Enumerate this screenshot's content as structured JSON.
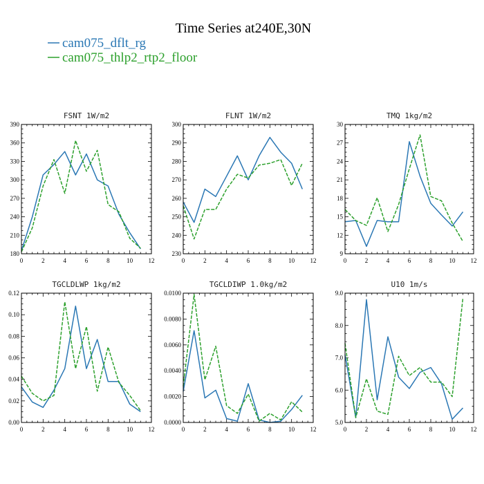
{
  "figure": {
    "title": "Time Series at240E,30N",
    "legend": [
      {
        "name": "cam075_dflt_rg",
        "color": "#2a77b4"
      },
      {
        "name": "cam075_thlp2_rtp2_floor",
        "color": "#2ca02c",
        "dash": true
      }
    ]
  },
  "chart_data": [
    {
      "type": "line",
      "title": "FSNT   1W/m2",
      "x": [
        0,
        1,
        2,
        3,
        4,
        5,
        6,
        7,
        8,
        9,
        10,
        11
      ],
      "xlim": [
        0,
        12
      ],
      "ylim": [
        180,
        390
      ],
      "xticks": [
        0,
        2,
        4,
        6,
        8,
        10,
        12
      ],
      "yticks": [
        180,
        210,
        240,
        270,
        300,
        330,
        360,
        390
      ],
      "ytick_labels": [
        "180",
        "210",
        "240",
        "270",
        "300",
        "330",
        "360",
        "390"
      ],
      "series": [
        {
          "name": "cam075_dflt_rg",
          "values": [
            185,
            240,
            308,
            325,
            346,
            308,
            342,
            300,
            290,
            244,
            214,
            188
          ]
        },
        {
          "name": "cam075_thlp2_rtp2_floor",
          "values": [
            183,
            222,
            290,
            333,
            278,
            364,
            314,
            348,
            260,
            248,
            205,
            189
          ]
        }
      ]
    },
    {
      "type": "line",
      "title": "FLNT   1W/m2",
      "x": [
        0,
        1,
        2,
        3,
        4,
        5,
        6,
        7,
        8,
        9,
        10,
        11
      ],
      "xlim": [
        0,
        12
      ],
      "ylim": [
        230,
        300
      ],
      "xticks": [
        0,
        2,
        4,
        6,
        8,
        10,
        12
      ],
      "yticks": [
        230,
        240,
        250,
        260,
        270,
        280,
        290,
        300
      ],
      "ytick_labels": [
        "230",
        "240",
        "250",
        "260",
        "270",
        "280",
        "290",
        "300"
      ],
      "series": [
        {
          "name": "cam075_dflt_rg",
          "values": [
            258,
            247,
            265,
            261,
            272,
            283,
            270,
            283,
            293,
            285,
            279,
            265
          ]
        },
        {
          "name": "cam075_thlp2_rtp2_floor",
          "values": [
            256,
            238,
            254,
            254,
            265,
            273,
            271,
            278,
            279,
            281,
            267,
            279
          ]
        }
      ]
    },
    {
      "type": "line",
      "title": "TMQ   1kg/m2",
      "x": [
        0,
        1,
        2,
        3,
        4,
        5,
        6,
        7,
        8,
        9,
        10,
        11
      ],
      "xlim": [
        0,
        12
      ],
      "ylim": [
        9,
        30
      ],
      "xticks": [
        0,
        2,
        4,
        6,
        8,
        10,
        12
      ],
      "yticks": [
        9,
        12,
        15,
        18,
        21,
        24,
        27,
        30
      ],
      "ytick_labels": [
        "9",
        "12",
        "15",
        "18",
        "21",
        "24",
        "27",
        "30"
      ],
      "series": [
        {
          "name": "cam075_dflt_rg",
          "values": [
            14.2,
            14.4,
            10.2,
            14.4,
            14.2,
            14.2,
            27.2,
            21.6,
            17.2,
            15.3,
            13.5,
            15.8
          ]
        },
        {
          "name": "cam075_thlp2_rtp2_floor",
          "values": [
            16.2,
            14.4,
            13.6,
            18.1,
            12.6,
            17.0,
            22.8,
            28.3,
            18.3,
            17.6,
            14.0,
            11.0
          ]
        }
      ]
    },
    {
      "type": "line",
      "title": "TGCLDLWP   1kg/m2",
      "x": [
        0,
        1,
        2,
        3,
        4,
        5,
        6,
        7,
        8,
        9,
        10,
        11
      ],
      "xlim": [
        0,
        12
      ],
      "ylim": [
        0,
        0.12
      ],
      "xticks": [
        0,
        2,
        4,
        6,
        8,
        10,
        12
      ],
      "yticks": [
        0,
        0.02,
        0.04,
        0.06,
        0.08,
        0.1,
        0.12
      ],
      "ytick_labels": [
        "0.00",
        "0.02",
        "0.04",
        "0.06",
        "0.08",
        "0.10",
        "0.12"
      ],
      "series": [
        {
          "name": "cam075_dflt_rg",
          "values": [
            0.033,
            0.019,
            0.014,
            0.03,
            0.05,
            0.108,
            0.05,
            0.077,
            0.038,
            0.038,
            0.017,
            0.01
          ]
        },
        {
          "name": "cam075_thlp2_rtp2_floor",
          "values": [
            0.043,
            0.027,
            0.02,
            0.025,
            0.112,
            0.05,
            0.089,
            0.029,
            0.07,
            0.037,
            0.025,
            0.011
          ]
        }
      ]
    },
    {
      "type": "line",
      "title": "TGCLDIWP   1.0kg/m2",
      "x": [
        0,
        1,
        2,
        3,
        4,
        5,
        6,
        7,
        8,
        9,
        10,
        11
      ],
      "xlim": [
        0,
        12
      ],
      "ylim": [
        0,
        0.01
      ],
      "xticks": [
        0,
        2,
        4,
        6,
        8,
        10,
        12
      ],
      "yticks": [
        0,
        0.002,
        0.004,
        0.006,
        0.008,
        0.01
      ],
      "ytick_labels": [
        "0.0000",
        "0.0020",
        "0.0040",
        "0.0060",
        "0.0080",
        "0.0100"
      ],
      "series": [
        {
          "name": "cam075_dflt_rg",
          "values": [
            0.0024,
            0.0071,
            0.0019,
            0.0025,
            0.0003,
            0.0001,
            0.003,
            0.0002,
            0.0,
            0.0001,
            0.001,
            0.0021
          ]
        },
        {
          "name": "cam075_thlp2_rtp2_floor",
          "values": [
            0.0028,
            0.0099,
            0.0033,
            0.0059,
            0.0013,
            0.0007,
            0.0022,
            0.0001,
            0.0007,
            0.0002,
            0.0016,
            0.0008
          ]
        }
      ]
    },
    {
      "type": "line",
      "title": "U10   1m/s",
      "x": [
        0,
        1,
        2,
        3,
        4,
        5,
        6,
        7,
        8,
        9,
        10,
        11
      ],
      "xlim": [
        0,
        12
      ],
      "ylim": [
        5,
        9
      ],
      "xticks": [
        0,
        2,
        4,
        6,
        8,
        10,
        12
      ],
      "yticks": [
        5,
        6,
        7,
        8,
        9
      ],
      "ytick_labels": [
        "5.0",
        "6.0",
        "7.0",
        "8.0",
        "9.0"
      ],
      "series": [
        {
          "name": "cam075_dflt_rg",
          "values": [
            7.1,
            5.15,
            8.8,
            5.7,
            7.65,
            6.4,
            6.05,
            6.55,
            6.7,
            6.2,
            5.1,
            5.45
          ]
        },
        {
          "name": "cam075_thlp2_rtp2_floor",
          "values": [
            7.45,
            5.15,
            6.35,
            5.35,
            5.25,
            7.05,
            6.45,
            6.7,
            6.25,
            6.25,
            5.8,
            8.85
          ]
        }
      ]
    }
  ]
}
